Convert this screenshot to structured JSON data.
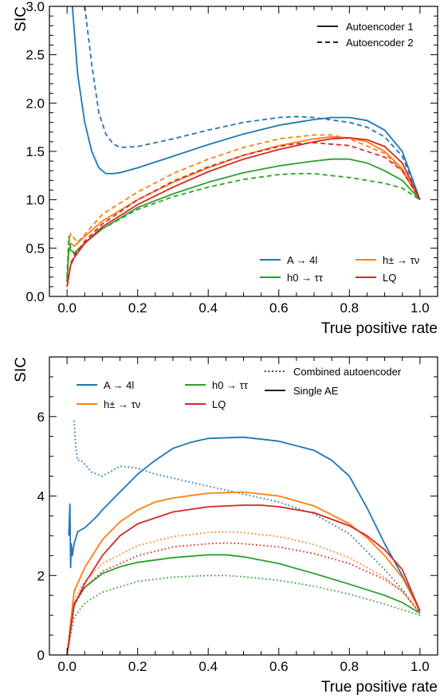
{
  "chart_data": [
    {
      "type": "line",
      "xlabel": "True positive rate",
      "ylabel": "SIC",
      "xlim": [
        -0.05,
        1.05
      ],
      "ylim": [
        0.0,
        3.0
      ],
      "xticks": [
        0.0,
        0.2,
        0.4,
        0.6,
        0.8,
        1.0
      ],
      "xtick_labels": [
        "0.0",
        "0.2",
        "0.4",
        "0.6",
        "0.8",
        "1.0"
      ],
      "yticks": [
        0.0,
        0.5,
        1.0,
        1.5,
        2.0,
        2.5,
        3.0
      ],
      "ytick_labels": [
        "0.0",
        "0.5",
        "1.0",
        "1.5",
        "2.0",
        "2.5",
        "3.0"
      ],
      "style_legend": [
        {
          "label": "Autoencoder 1",
          "dash": "solid"
        },
        {
          "label": "Autoencoder 2",
          "dash": "dashed"
        }
      ],
      "signal_legend": [
        {
          "label": "A → 4l",
          "color": "#1f77b4"
        },
        {
          "label": "h± → τν",
          "color": "#ff7f0e"
        },
        {
          "label": "h0 → ττ",
          "color": "#2ca02c"
        },
        {
          "label": "LQ",
          "color": "#d62728"
        }
      ],
      "series": [
        {
          "signal": "A → 4l",
          "style": "solid",
          "color": "#1f77b4",
          "x": [
            0.015,
            0.03,
            0.05,
            0.07,
            0.09,
            0.11,
            0.13,
            0.15,
            0.2,
            0.3,
            0.4,
            0.5,
            0.6,
            0.7,
            0.75,
            0.8,
            0.85,
            0.9,
            0.95,
            1.0
          ],
          "y": [
            3.0,
            2.3,
            1.8,
            1.5,
            1.33,
            1.27,
            1.27,
            1.28,
            1.33,
            1.45,
            1.57,
            1.68,
            1.77,
            1.83,
            1.85,
            1.85,
            1.82,
            1.72,
            1.5,
            1.0
          ]
        },
        {
          "signal": "A → 4l",
          "style": "dashed",
          "color": "#1f77b4",
          "x": [
            0.05,
            0.07,
            0.09,
            0.11,
            0.13,
            0.15,
            0.2,
            0.3,
            0.4,
            0.5,
            0.6,
            0.65,
            0.7,
            0.8,
            0.85,
            0.9,
            0.95,
            1.0
          ],
          "y": [
            3.0,
            2.4,
            1.9,
            1.68,
            1.58,
            1.54,
            1.55,
            1.63,
            1.72,
            1.8,
            1.85,
            1.86,
            1.85,
            1.8,
            1.75,
            1.65,
            1.45,
            1.0
          ]
        },
        {
          "signal": "h± → τν",
          "style": "solid",
          "color": "#ff7f0e",
          "x": [
            0.0,
            0.005,
            0.01,
            0.02,
            0.05,
            0.1,
            0.2,
            0.3,
            0.4,
            0.5,
            0.6,
            0.7,
            0.75,
            0.8,
            0.85,
            0.9,
            0.95,
            1.0
          ],
          "y": [
            0.15,
            0.45,
            0.55,
            0.52,
            0.62,
            0.78,
            1.0,
            1.18,
            1.33,
            1.46,
            1.56,
            1.63,
            1.65,
            1.64,
            1.6,
            1.5,
            1.32,
            1.0
          ]
        },
        {
          "signal": "h± → τν",
          "style": "dashed",
          "color": "#ff7f0e",
          "x": [
            0.0,
            0.005,
            0.01,
            0.02,
            0.03,
            0.05,
            0.1,
            0.2,
            0.3,
            0.4,
            0.5,
            0.6,
            0.7,
            0.75,
            0.8,
            0.9,
            0.95,
            1.0
          ],
          "y": [
            0.2,
            0.55,
            0.65,
            0.6,
            0.56,
            0.64,
            0.85,
            1.08,
            1.27,
            1.42,
            1.54,
            1.63,
            1.67,
            1.67,
            1.63,
            1.48,
            1.3,
            1.0
          ]
        },
        {
          "signal": "h0 → ττ",
          "style": "solid",
          "color": "#2ca02c",
          "x": [
            0.0,
            0.005,
            0.01,
            0.02,
            0.05,
            0.1,
            0.2,
            0.3,
            0.4,
            0.5,
            0.6,
            0.7,
            0.75,
            0.8,
            0.85,
            0.9,
            0.95,
            1.0
          ],
          "y": [
            0.15,
            0.5,
            0.48,
            0.45,
            0.55,
            0.7,
            0.92,
            1.06,
            1.18,
            1.28,
            1.35,
            1.4,
            1.42,
            1.42,
            1.38,
            1.3,
            1.2,
            1.0
          ]
        },
        {
          "signal": "h0 → ττ",
          "style": "dashed",
          "color": "#2ca02c",
          "x": [
            0.0,
            0.005,
            0.01,
            0.02,
            0.05,
            0.1,
            0.2,
            0.3,
            0.4,
            0.5,
            0.6,
            0.65,
            0.7,
            0.8,
            0.9,
            0.95,
            1.0
          ],
          "y": [
            0.2,
            0.62,
            0.5,
            0.44,
            0.55,
            0.7,
            0.9,
            1.03,
            1.13,
            1.21,
            1.26,
            1.27,
            1.27,
            1.23,
            1.17,
            1.12,
            1.0
          ]
        },
        {
          "signal": "LQ",
          "style": "solid",
          "color": "#d62728",
          "x": [
            0.0,
            0.01,
            0.02,
            0.05,
            0.1,
            0.2,
            0.3,
            0.4,
            0.5,
            0.6,
            0.7,
            0.75,
            0.8,
            0.85,
            0.9,
            0.95,
            1.0
          ],
          "y": [
            0.1,
            0.32,
            0.4,
            0.55,
            0.72,
            0.95,
            1.13,
            1.29,
            1.42,
            1.52,
            1.6,
            1.63,
            1.64,
            1.62,
            1.55,
            1.38,
            1.0
          ]
        },
        {
          "signal": "LQ",
          "style": "dashed",
          "color": "#d62728",
          "x": [
            0.0,
            0.01,
            0.02,
            0.05,
            0.1,
            0.2,
            0.3,
            0.4,
            0.5,
            0.6,
            0.65,
            0.7,
            0.8,
            0.9,
            0.95,
            1.0
          ],
          "y": [
            0.1,
            0.34,
            0.42,
            0.57,
            0.75,
            1.0,
            1.19,
            1.34,
            1.46,
            1.55,
            1.58,
            1.59,
            1.56,
            1.44,
            1.3,
            1.0
          ]
        }
      ]
    },
    {
      "type": "line",
      "xlabel": "True positive rate",
      "ylabel": "SIC",
      "xlim": [
        -0.05,
        1.05
      ],
      "ylim": [
        0.0,
        7.5
      ],
      "xticks": [
        0.0,
        0.2,
        0.4,
        0.6,
        0.8,
        1.0
      ],
      "xtick_labels": [
        "0.0",
        "0.2",
        "0.4",
        "0.6",
        "0.8",
        "1.0"
      ],
      "yticks": [
        0,
        2,
        4,
        6
      ],
      "ytick_labels": [
        "0",
        "2",
        "4",
        "6"
      ],
      "style_legend": [
        {
          "label": "Combined autoencoder",
          "dash": "dotted"
        },
        {
          "label": "Single AE",
          "dash": "solid"
        }
      ],
      "signal_legend": [
        {
          "label": "A → 4l",
          "color": "#1f77b4"
        },
        {
          "label": "h0 → ττ",
          "color": "#2ca02c"
        },
        {
          "label": "h± → τν",
          "color": "#ff7f0e"
        },
        {
          "label": "LQ",
          "color": "#d62728"
        }
      ],
      "series": [
        {
          "signal": "A → 4l",
          "style": "solid",
          "color": "#1f77b4",
          "x": [
            0.005,
            0.008,
            0.01,
            0.012,
            0.015,
            0.02,
            0.03,
            0.05,
            0.08,
            0.1,
            0.15,
            0.2,
            0.25,
            0.3,
            0.35,
            0.4,
            0.5,
            0.6,
            0.7,
            0.75,
            0.8,
            0.85,
            0.9,
            0.95,
            1.0
          ],
          "y": [
            3.0,
            3.8,
            2.2,
            2.8,
            2.5,
            2.8,
            3.1,
            3.2,
            3.45,
            3.65,
            4.1,
            4.55,
            4.9,
            5.2,
            5.35,
            5.45,
            5.48,
            5.38,
            5.15,
            4.9,
            4.5,
            3.7,
            2.8,
            2.0,
            1.1
          ]
        },
        {
          "signal": "A → 4l",
          "style": "dotted",
          "color": "#1f77b4",
          "x": [
            0.02,
            0.025,
            0.03,
            0.04,
            0.05,
            0.07,
            0.1,
            0.13,
            0.15,
            0.2,
            0.25,
            0.3,
            0.4,
            0.5,
            0.6,
            0.7,
            0.8,
            0.9,
            0.95,
            1.0
          ],
          "y": [
            5.9,
            5.2,
            4.9,
            4.9,
            4.8,
            4.6,
            4.5,
            4.65,
            4.75,
            4.7,
            4.55,
            4.45,
            4.25,
            4.05,
            3.85,
            3.55,
            3.05,
            2.15,
            1.65,
            1.05
          ]
        },
        {
          "signal": "h± → τν",
          "style": "solid",
          "color": "#ff7f0e",
          "x": [
            0.0,
            0.02,
            0.05,
            0.1,
            0.15,
            0.2,
            0.25,
            0.3,
            0.4,
            0.5,
            0.6,
            0.7,
            0.8,
            0.85,
            0.9,
            0.95,
            1.0
          ],
          "y": [
            0.0,
            1.6,
            2.2,
            2.9,
            3.35,
            3.65,
            3.85,
            3.95,
            4.07,
            4.1,
            4.0,
            3.75,
            3.3,
            2.95,
            2.5,
            1.95,
            1.1
          ]
        },
        {
          "signal": "h± → τν",
          "style": "dotted",
          "color": "#ff7f0e",
          "x": [
            0.0,
            0.02,
            0.05,
            0.1,
            0.2,
            0.3,
            0.4,
            0.45,
            0.5,
            0.6,
            0.7,
            0.8,
            0.9,
            0.95,
            1.0
          ],
          "y": [
            0.0,
            1.4,
            1.85,
            2.3,
            2.75,
            2.98,
            3.08,
            3.1,
            3.08,
            2.98,
            2.78,
            2.45,
            1.95,
            1.6,
            1.05
          ]
        },
        {
          "signal": "h0 → ττ",
          "style": "solid",
          "color": "#2ca02c",
          "x": [
            0.0,
            0.02,
            0.05,
            0.1,
            0.15,
            0.2,
            0.3,
            0.4,
            0.45,
            0.5,
            0.6,
            0.7,
            0.8,
            0.9,
            0.95,
            1.0
          ],
          "y": [
            0.0,
            1.3,
            1.7,
            2.05,
            2.22,
            2.33,
            2.45,
            2.52,
            2.52,
            2.47,
            2.3,
            2.05,
            1.78,
            1.5,
            1.32,
            1.05
          ]
        },
        {
          "signal": "h0 → ττ",
          "style": "dotted",
          "color": "#2ca02c",
          "x": [
            0.0,
            0.02,
            0.05,
            0.1,
            0.2,
            0.3,
            0.4,
            0.45,
            0.5,
            0.6,
            0.7,
            0.8,
            0.9,
            1.0
          ],
          "y": [
            0.0,
            0.95,
            1.3,
            1.58,
            1.85,
            1.96,
            2.0,
            2.0,
            1.97,
            1.88,
            1.73,
            1.53,
            1.28,
            1.0
          ]
        },
        {
          "signal": "LQ",
          "style": "solid",
          "color": "#d62728",
          "x": [
            0.0,
            0.02,
            0.05,
            0.1,
            0.15,
            0.2,
            0.3,
            0.4,
            0.5,
            0.55,
            0.6,
            0.7,
            0.8,
            0.85,
            0.9,
            0.95,
            1.0
          ],
          "y": [
            0.0,
            1.25,
            1.8,
            2.5,
            3.0,
            3.3,
            3.6,
            3.73,
            3.77,
            3.77,
            3.73,
            3.58,
            3.25,
            3.0,
            2.65,
            2.15,
            1.1
          ]
        },
        {
          "signal": "LQ",
          "style": "dotted",
          "color": "#d62728",
          "x": [
            0.0,
            0.02,
            0.05,
            0.1,
            0.2,
            0.3,
            0.4,
            0.45,
            0.5,
            0.6,
            0.7,
            0.8,
            0.9,
            0.95,
            1.0
          ],
          "y": [
            0.0,
            1.25,
            1.7,
            2.1,
            2.5,
            2.72,
            2.8,
            2.82,
            2.8,
            2.72,
            2.55,
            2.3,
            1.9,
            1.6,
            1.05
          ]
        }
      ]
    }
  ]
}
